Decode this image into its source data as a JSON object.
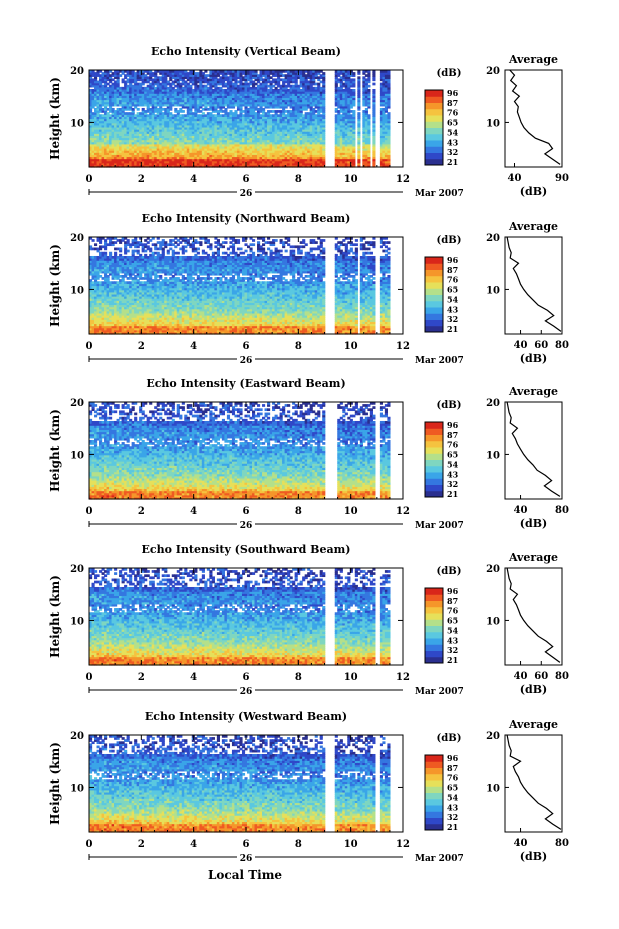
{
  "chart_data": {
    "type": "heatmap",
    "xlabel": "Local Time",
    "day_label": "26",
    "month_label": "Mar 2007",
    "x_ticks": [
      0,
      2,
      4,
      6,
      8,
      10,
      12
    ],
    "xlim": [
      0,
      12
    ],
    "ylabel": "Height (km)",
    "y_ticks": [
      10,
      20
    ],
    "ylim": [
      1.5,
      20
    ],
    "colorbar": {
      "label": "(dB)",
      "tick_labels": [
        "96",
        "87",
        "76",
        "65",
        "54",
        "43",
        "32",
        "21"
      ],
      "colors": [
        "#2a2f8f",
        "#2f48c8",
        "#3477e0",
        "#3aa5e8",
        "#5ac8e0",
        "#7fd6c0",
        "#b4e08a",
        "#e6e05a",
        "#f5c33f",
        "#f5962a",
        "#ef5a22",
        "#d9261a"
      ]
    },
    "data_gaps": [
      [
        9.05,
        9.35
      ],
      [
        10.95,
        11.15
      ]
    ],
    "data_end": 11.5,
    "average_profile": {
      "title": "Average",
      "xlabel": "(dB)",
      "y_ticks": [
        10,
        20
      ]
    },
    "panels": [
      {
        "title": "Echo Intensity (Vertical Beam)",
        "avg_x_ticks": [
          "40",
          "90"
        ],
        "avg_xlim": [
          30,
          90
        ],
        "avg_profile_height_km": [
          2,
          3,
          4,
          5,
          6,
          7,
          8,
          9,
          10,
          11,
          12,
          13,
          14,
          15,
          16,
          17,
          18,
          19,
          20
        ],
        "avg_profile_db": [
          88,
          80,
          72,
          80,
          76,
          62,
          55,
          50,
          47,
          45,
          43,
          44,
          40,
          45,
          38,
          42,
          36,
          40,
          35
        ]
      },
      {
        "title": "Echo Intensity (Northward Beam)",
        "avg_x_ticks": [
          "40",
          "60",
          "80"
        ],
        "avg_xlim": [
          25,
          80
        ],
        "avg_profile_height_km": [
          2,
          3,
          4,
          5,
          6,
          7,
          8,
          9,
          10,
          11,
          12,
          13,
          14,
          15,
          16,
          17,
          18,
          19,
          20
        ],
        "avg_profile_db": [
          79,
          72,
          64,
          72,
          66,
          57,
          52,
          47,
          43,
          40,
          38,
          36,
          33,
          38,
          30,
          31,
          29,
          28,
          27
        ]
      },
      {
        "title": "Echo Intensity (Eastward Beam)",
        "avg_x_ticks": [
          "40",
          "80"
        ],
        "avg_xlim": [
          25,
          80
        ],
        "avg_profile_height_km": [
          2,
          3,
          4,
          5,
          6,
          7,
          8,
          9,
          10,
          11,
          12,
          13,
          14,
          15,
          16,
          17,
          18,
          19,
          20
        ],
        "avg_profile_db": [
          78,
          70,
          63,
          70,
          64,
          56,
          52,
          47,
          43,
          40,
          37,
          35,
          32,
          37,
          30,
          31,
          29,
          28,
          27
        ]
      },
      {
        "title": "Echo Intensity (Southward Beam)",
        "avg_x_ticks": [
          "40",
          "60",
          "80"
        ],
        "avg_xlim": [
          25,
          80
        ],
        "avg_profile_height_km": [
          2,
          3,
          4,
          5,
          6,
          7,
          8,
          9,
          10,
          11,
          12,
          13,
          14,
          15,
          16,
          17,
          18,
          19,
          20
        ],
        "avg_profile_db": [
          78,
          71,
          64,
          71,
          65,
          57,
          52,
          47,
          43,
          40,
          38,
          36,
          33,
          37,
          30,
          31,
          29,
          28,
          27
        ]
      },
      {
        "title": "Echo Intensity (Westward Beam)",
        "avg_x_ticks": [
          "40",
          "80"
        ],
        "avg_xlim": [
          25,
          80
        ],
        "avg_profile_height_km": [
          2,
          3,
          4,
          5,
          6,
          7,
          8,
          9,
          10,
          11,
          12,
          13,
          14,
          15,
          16,
          17,
          18,
          19,
          20
        ],
        "avg_profile_db": [
          79,
          71,
          64,
          71,
          65,
          57,
          52,
          47,
          43,
          40,
          38,
          35,
          33,
          40,
          30,
          31,
          29,
          28,
          27
        ]
      }
    ]
  }
}
